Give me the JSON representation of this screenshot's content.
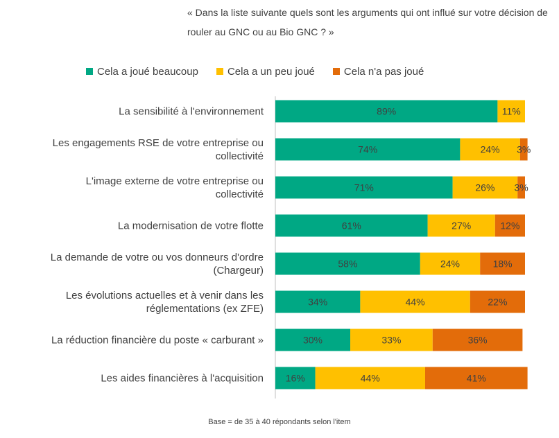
{
  "question": "« Dans la liste suivante quels sont les arguments qui ont influé sur votre décision de rouler au GNC ou au Bio GNC ? »",
  "base_note": "Base = de 35 à 40 répondants selon l'item",
  "colors": {
    "beaucoup": "#00A884",
    "un_peu": "#FFC000",
    "pas": "#E36C0A",
    "axis": "#bfbfbf"
  },
  "chart_data": {
    "type": "bar",
    "orientation": "horizontal",
    "stacked": true,
    "legend_position": "top",
    "xlim": [
      0,
      100
    ],
    "unit": "%",
    "categories": [
      [
        "La sensibilité à l'environnement"
      ],
      [
        "Les engagements RSE de votre entreprise ou",
        "collectivité"
      ],
      [
        "L'image externe de votre entreprise ou",
        "collectivité"
      ],
      [
        "La modernisation de votre flotte"
      ],
      [
        "La demande de votre ou vos donneurs d'ordre",
        "(Chargeur)"
      ],
      [
        "Les évolutions actuelles et à venir dans les",
        "réglementations (ex ZFE)"
      ],
      [
        "La réduction financière du poste « carburant »"
      ],
      [
        "Les aides financières à l'acquisition"
      ]
    ],
    "series": [
      {
        "name": "Cela a joué beaucoup",
        "color": "#00A884",
        "values": [
          89,
          74,
          71,
          61,
          58,
          34,
          30,
          16
        ]
      },
      {
        "name": "Cela a un peu joué",
        "color": "#FFC000",
        "values": [
          11,
          24,
          26,
          27,
          24,
          44,
          33,
          44
        ]
      },
      {
        "name": "Cela n'a pas joué",
        "color": "#E36C0A",
        "values": [
          0,
          3,
          3,
          12,
          18,
          22,
          36,
          41
        ]
      }
    ]
  }
}
